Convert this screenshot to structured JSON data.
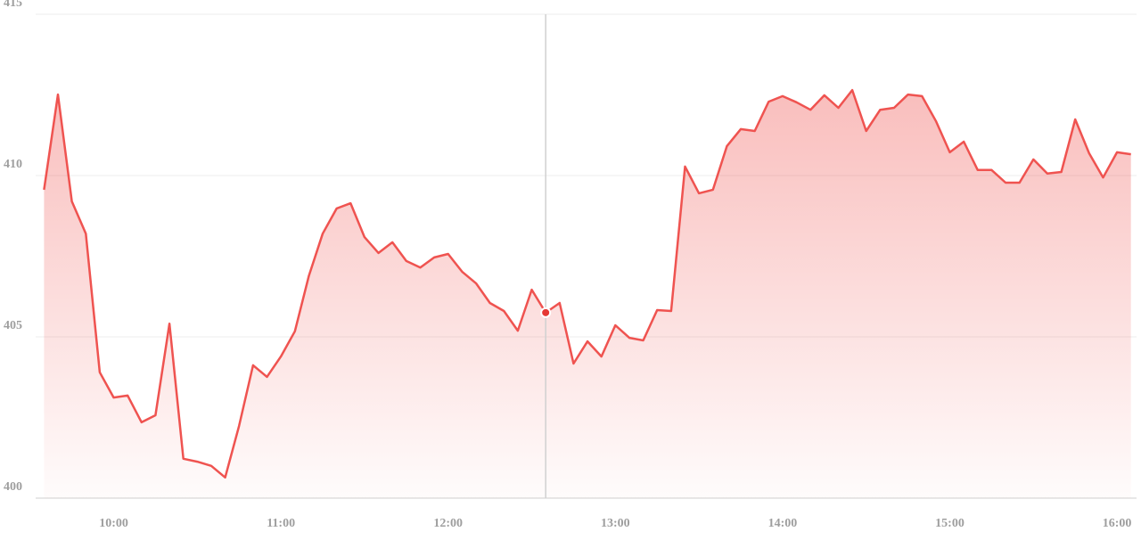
{
  "chart_data": {
    "type": "area",
    "x": [
      575,
      580,
      585,
      590,
      595,
      600,
      605,
      610,
      615,
      620,
      625,
      630,
      635,
      640,
      645,
      650,
      655,
      660,
      665,
      670,
      675,
      680,
      685,
      690,
      695,
      700,
      705,
      710,
      715,
      720,
      725,
      730,
      735,
      740,
      745,
      750,
      755,
      760,
      765,
      770,
      775,
      780,
      785,
      790,
      795,
      800,
      805,
      810,
      815,
      820,
      825,
      830,
      835,
      840,
      845,
      850,
      855,
      860,
      865,
      870,
      875,
      880,
      885,
      890,
      895,
      900,
      905,
      910,
      915,
      920,
      925,
      930,
      935,
      940,
      945,
      950,
      955,
      960,
      965
    ],
    "values": [
      409.56,
      412.51,
      409.2,
      408.2,
      403.9,
      403.12,
      403.18,
      402.35,
      402.57,
      405.41,
      401.22,
      401.13,
      401.0,
      400.64,
      402.24,
      404.12,
      403.76,
      404.39,
      405.17,
      406.88,
      408.2,
      408.98,
      409.14,
      408.09,
      407.6,
      407.93,
      407.35,
      407.15,
      407.46,
      407.57,
      407.02,
      406.66,
      406.05,
      405.8,
      405.19,
      406.46,
      405.75,
      406.05,
      404.17,
      404.86,
      404.39,
      405.36,
      404.97,
      404.89,
      405.83,
      405.8,
      410.28,
      409.45,
      409.56,
      410.91,
      411.44,
      411.38,
      412.29,
      412.46,
      412.27,
      412.04,
      412.49,
      412.1,
      412.65,
      411.38,
      412.04,
      412.1,
      412.51,
      412.46,
      411.69,
      410.72,
      411.05,
      410.17,
      410.17,
      409.78,
      409.78,
      410.5,
      410.06,
      410.11,
      411.74,
      410.69,
      409.94,
      410.72,
      410.66
    ],
    "color": "#ef5350",
    "xlim": [
      572,
      967
    ],
    "xticks": [
      {
        "value": 600,
        "label": "10:00"
      },
      {
        "value": 660,
        "label": "11:00"
      },
      {
        "value": 720,
        "label": "12:00"
      },
      {
        "value": 780,
        "label": "13:00"
      },
      {
        "value": 840,
        "label": "14:00"
      },
      {
        "value": 900,
        "label": "15:00"
      },
      {
        "value": 960,
        "label": "16:00"
      }
    ],
    "ylim": [
      400,
      415
    ],
    "yticks": [
      400,
      405,
      410,
      415
    ],
    "grid": true,
    "hover_index": 36
  }
}
